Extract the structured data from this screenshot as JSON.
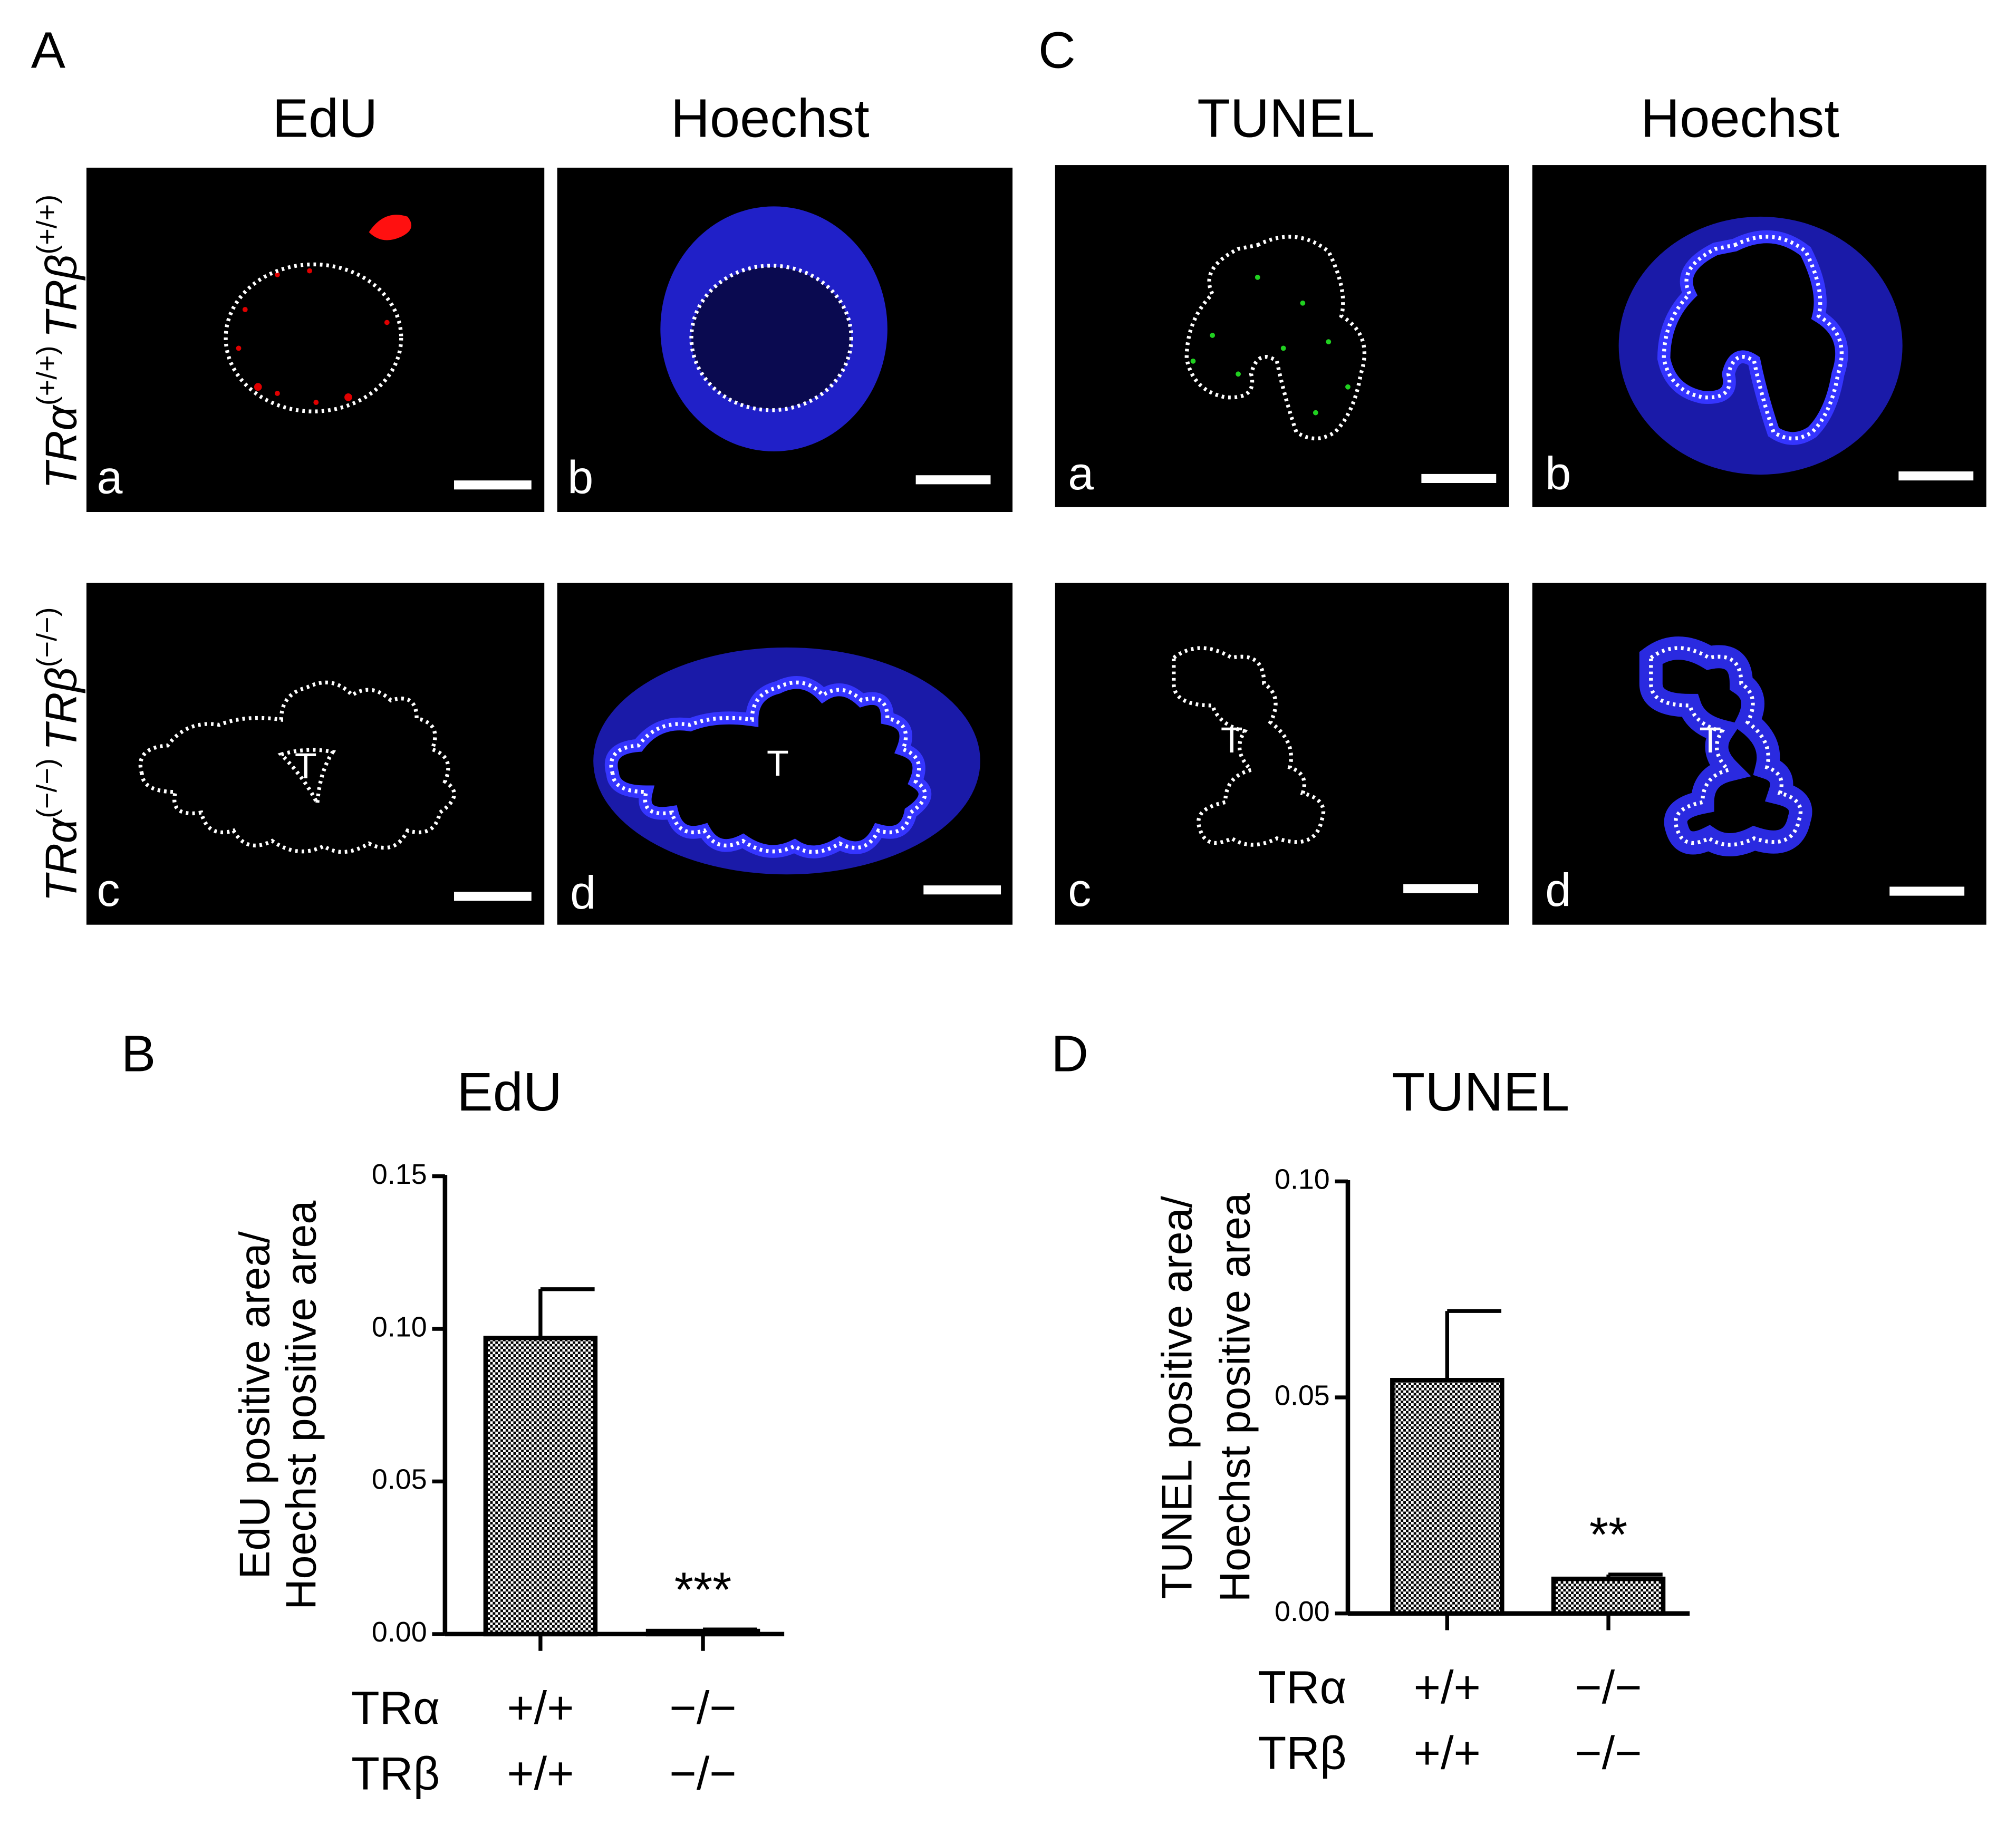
{
  "panel_A": {
    "letter": "A",
    "columns": [
      "EdU",
      "Hoechst"
    ],
    "row_labels": [
      {
        "gene1": "TRα",
        "geno1": "(+/+)",
        "gene2": "TRβ",
        "geno2": "(+/+)"
      },
      {
        "gene1": "TRα",
        "geno1": "(−/−)",
        "gene2": "TRβ",
        "geno2": "(−/−)"
      }
    ],
    "image_labels": [
      "a",
      "b",
      "c",
      "d"
    ],
    "marker": "T"
  },
  "panel_C": {
    "letter": "C",
    "columns": [
      "TUNEL",
      "Hoechst"
    ],
    "image_labels": [
      "a",
      "b",
      "c",
      "d"
    ],
    "marker": "T"
  },
  "panel_letters": [
    "B",
    "D"
  ],
  "chart_data": [
    {
      "type": "bar",
      "title": "EdU",
      "y_label": [
        "EdU positive area/",
        "Hoechst positive area"
      ],
      "x_rows": [
        {
          "name": "TRα",
          "labels": [
            "+/+",
            "−/−"
          ]
        },
        {
          "name": "TRβ",
          "labels": [
            "+/+",
            "−/−"
          ]
        }
      ],
      "values": [
        0.097,
        0.001
      ],
      "errors": [
        0.016,
        0.0005
      ],
      "color": "#000000",
      "ylim": [
        0,
        0.15
      ],
      "yticks": [
        {
          "value": 0,
          "label": "0.00"
        },
        0.05,
        {
          "value": 0.1,
          "label": "0.10"
        },
        0.15
      ],
      "significance": "***"
    },
    {
      "type": "bar",
      "title": "TUNEL",
      "y_label": [
        "TUNEL positive area/",
        "Hoechst positive area"
      ],
      "x_rows": [
        {
          "name": "TRα",
          "labels": [
            "+/+",
            "−/−"
          ]
        },
        {
          "name": "TRβ",
          "labels": [
            "+/+",
            "−/−"
          ]
        }
      ],
      "values": [
        0.054,
        0.008
      ],
      "errors": [
        0.016,
        0.001
      ],
      "color": "#000000",
      "ylim": [
        0,
        0.1
      ],
      "yticks": [
        {
          "value": 0,
          "label": "0.00"
        },
        0.05,
        {
          "value": 0.1,
          "label": "0.10"
        }
      ],
      "significance": "**"
    }
  ]
}
